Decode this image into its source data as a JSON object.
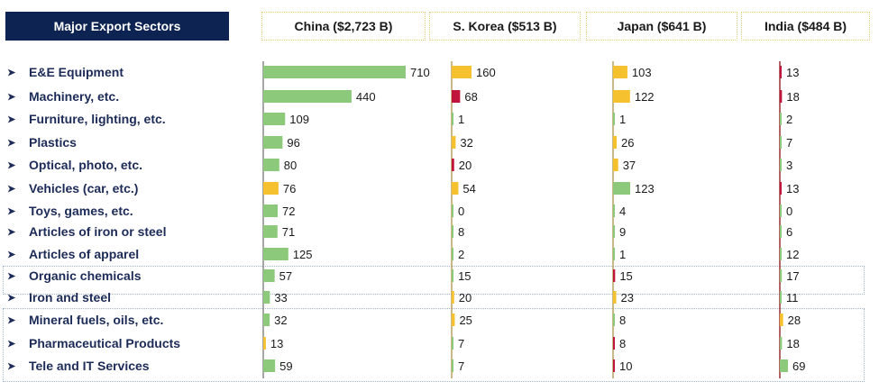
{
  "header": {
    "sectors_label": "Major Export Sectors"
  },
  "chart_data": {
    "type": "bar",
    "orientation": "horizontal",
    "categories": [
      "E&E Equipment",
      "Machinery, etc.",
      "Furniture, lighting, etc.",
      "Plastics",
      "Optical, photo, etc.",
      "Vehicles (car, etc.)",
      "Toys, games, etc.",
      "Articles of iron or steel",
      "Articles of apparel",
      "Organic chemicals",
      "Iron and steel",
      "Mineral fuels, oils, etc.",
      "Pharmaceutical Products",
      "Tele and IT Services"
    ],
    "series": [
      {
        "name": "China ($2,723 B)",
        "values": [
          710,
          440,
          109,
          96,
          80,
          76,
          72,
          71,
          125,
          57,
          33,
          32,
          13,
          59
        ],
        "colors": [
          "green",
          "green",
          "green",
          "green",
          "green",
          "yellow",
          "green",
          "green",
          "green",
          "green",
          "green",
          "green",
          "yellow",
          "green"
        ]
      },
      {
        "name": "S. Korea ($513 B)",
        "values": [
          160,
          68,
          1,
          32,
          20,
          54,
          0,
          8,
          2,
          15,
          20,
          25,
          7,
          7
        ],
        "colors": [
          "yellow",
          "red",
          "green",
          "yellow",
          "red",
          "yellow",
          "green",
          "green",
          "green",
          "green",
          "yellow",
          "yellow",
          "green",
          "green"
        ]
      },
      {
        "name": "Japan ($641 B)",
        "values": [
          103,
          122,
          1,
          26,
          37,
          123,
          4,
          9,
          1,
          15,
          23,
          8,
          8,
          10
        ],
        "colors": [
          "yellow",
          "yellow",
          "green",
          "yellow",
          "yellow",
          "green",
          "green",
          "green",
          "green",
          "red",
          "yellow",
          "green",
          "red",
          "red"
        ]
      },
      {
        "name": "India ($484 B)",
        "values": [
          13,
          18,
          2,
          7,
          3,
          13,
          0,
          6,
          12,
          17,
          11,
          28,
          18,
          69
        ],
        "colors": [
          "red",
          "red",
          "green",
          "green",
          "green",
          "red",
          "green",
          "green",
          "green",
          "green",
          "green",
          "yellow",
          "green",
          "green"
        ]
      }
    ],
    "palette": {
      "green": "#8cc97b",
      "yellow": "#f6c12f",
      "red": "#c0143c"
    }
  }
}
